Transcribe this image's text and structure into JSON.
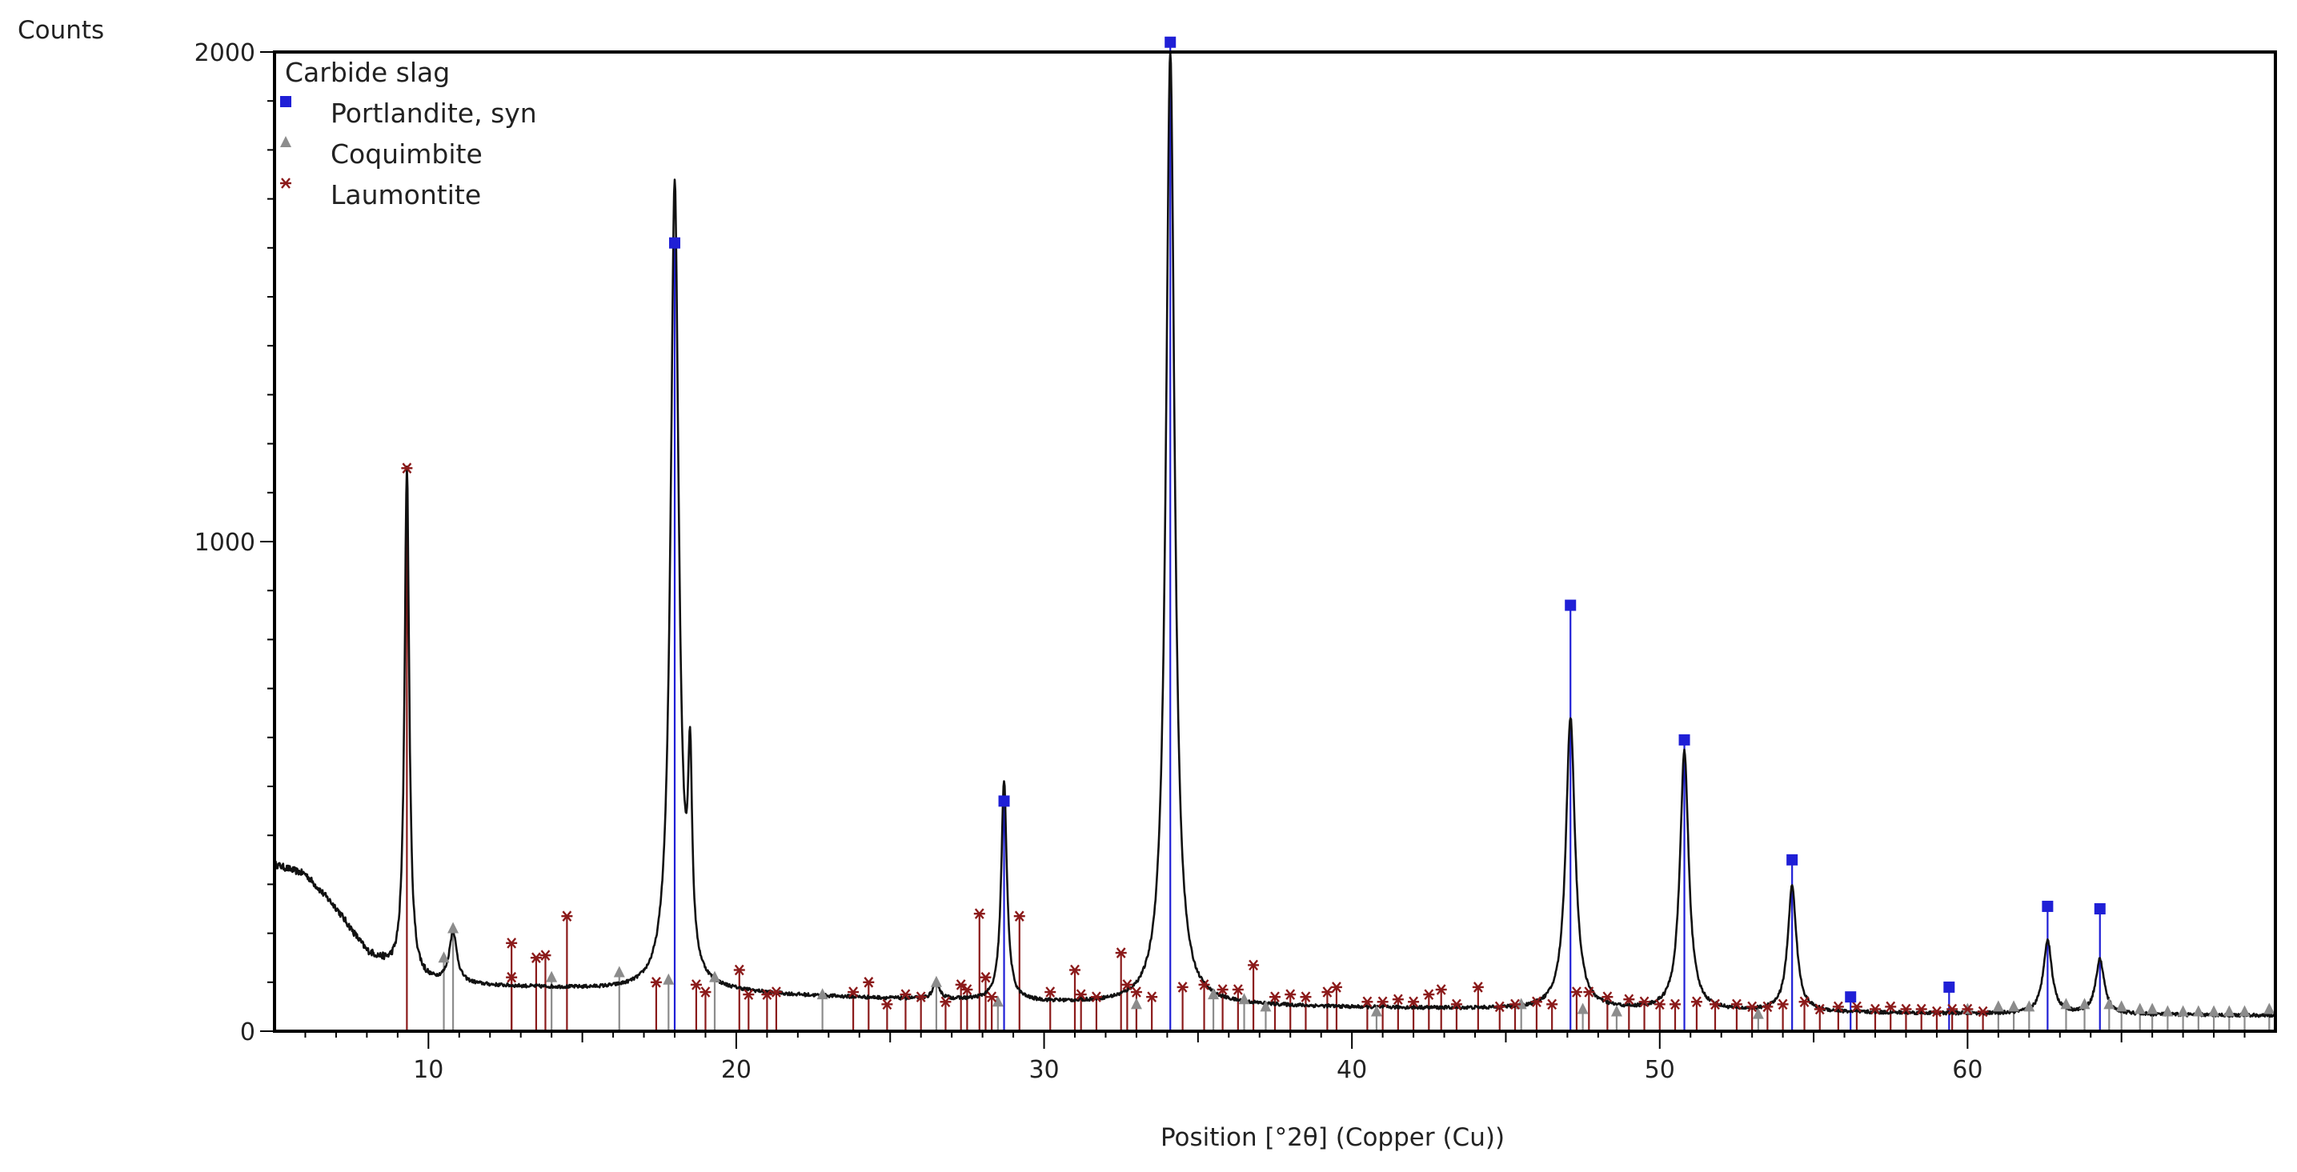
{
  "chart_data": {
    "type": "line",
    "xlabel": "Position [°2θ] (Copper (Cu))",
    "ylabel": "Counts",
    "xlim": [
      5,
      70
    ],
    "ylim": [
      0,
      2000
    ],
    "x_ticks": [
      10,
      20,
      30,
      40,
      50,
      60
    ],
    "y_ticks": [
      0,
      1000,
      2000
    ],
    "grid": false,
    "legend": {
      "placement": "top-left",
      "title": "Carbide slag",
      "entries": [
        {
          "name": "Portlandite, syn",
          "marker": "square",
          "color": "#1f1fd6"
        },
        {
          "name": "Coquimbite",
          "marker": "triangle",
          "color": "#8c8c8c"
        },
        {
          "name": "Laumontite",
          "marker": "asterisk",
          "color": "#8b1a1a"
        }
      ]
    },
    "series": [
      {
        "name": "Carbide slag",
        "color": "#111111",
        "background": [
          [
            5,
            340
          ],
          [
            6,
            320
          ],
          [
            7,
            250
          ],
          [
            8,
            160
          ],
          [
            9,
            120
          ],
          [
            10,
            100
          ],
          [
            11,
            95
          ],
          [
            12,
            92
          ],
          [
            14,
            88
          ],
          [
            16,
            84
          ],
          [
            18,
            80
          ],
          [
            20,
            78
          ],
          [
            22,
            72
          ],
          [
            25,
            66
          ],
          [
            28,
            62
          ],
          [
            30,
            58
          ],
          [
            33,
            55
          ],
          [
            36,
            52
          ],
          [
            40,
            48
          ],
          [
            45,
            45
          ],
          [
            50,
            42
          ],
          [
            55,
            38
          ],
          [
            60,
            36
          ],
          [
            65,
            34
          ],
          [
            70,
            32
          ]
        ],
        "peaks": [
          {
            "x": 9.3,
            "y": 1150,
            "w": 0.09
          },
          {
            "x": 10.8,
            "y": 200,
            "w": 0.15
          },
          {
            "x": 18.0,
            "y": 1730,
            "w": 0.16
          },
          {
            "x": 18.5,
            "y": 470,
            "w": 0.08
          },
          {
            "x": 26.5,
            "y": 100,
            "w": 0.12
          },
          {
            "x": 28.7,
            "y": 510,
            "w": 0.11
          },
          {
            "x": 34.1,
            "y": 2000,
            "w": 0.17
          },
          {
            "x": 47.1,
            "y": 640,
            "w": 0.18
          },
          {
            "x": 50.8,
            "y": 570,
            "w": 0.17
          },
          {
            "x": 54.3,
            "y": 295,
            "w": 0.17
          },
          {
            "x": 62.6,
            "y": 185,
            "w": 0.17
          },
          {
            "x": 64.3,
            "y": 145,
            "w": 0.17
          }
        ]
      }
    ],
    "reference_peaks": {
      "Portlandite, syn": [
        [
          18.0,
          1610
        ],
        [
          28.7,
          470
        ],
        [
          34.1,
          2020
        ],
        [
          47.1,
          870
        ],
        [
          50.8,
          595
        ],
        [
          54.3,
          350
        ],
        [
          56.2,
          70
        ],
        [
          59.4,
          90
        ],
        [
          62.6,
          255
        ],
        [
          64.3,
          250
        ]
      ],
      "Coquimbite": [
        [
          10.5,
          150
        ],
        [
          10.8,
          210
        ],
        [
          14.0,
          110
        ],
        [
          16.2,
          120
        ],
        [
          17.8,
          105
        ],
        [
          19.3,
          110
        ],
        [
          22.8,
          75
        ],
        [
          26.5,
          100
        ],
        [
          28.5,
          60
        ],
        [
          33.0,
          55
        ],
        [
          35.5,
          75
        ],
        [
          36.5,
          65
        ],
        [
          37.2,
          50
        ],
        [
          40.8,
          40
        ],
        [
          45.5,
          55
        ],
        [
          47.5,
          45
        ],
        [
          48.6,
          40
        ],
        [
          53.2,
          35
        ],
        [
          60.0,
          45
        ],
        [
          61.0,
          50
        ],
        [
          61.5,
          50
        ],
        [
          62.0,
          50
        ],
        [
          63.2,
          55
        ],
        [
          63.8,
          55
        ],
        [
          64.6,
          55
        ],
        [
          65.0,
          50
        ],
        [
          65.6,
          45
        ],
        [
          66.0,
          45
        ],
        [
          66.5,
          40
        ],
        [
          67.0,
          40
        ],
        [
          67.5,
          40
        ],
        [
          68.0,
          40
        ],
        [
          68.5,
          40
        ],
        [
          69.0,
          40
        ],
        [
          69.8,
          45
        ]
      ],
      "Laumontite": [
        [
          9.3,
          1150
        ],
        [
          12.7,
          180
        ],
        [
          12.7,
          110
        ],
        [
          13.5,
          150
        ],
        [
          13.8,
          155
        ],
        [
          14.5,
          235
        ],
        [
          17.4,
          100
        ],
        [
          18.7,
          95
        ],
        [
          19.0,
          80
        ],
        [
          20.1,
          125
        ],
        [
          20.4,
          75
        ],
        [
          21.0,
          75
        ],
        [
          21.3,
          80
        ],
        [
          23.8,
          80
        ],
        [
          24.3,
          100
        ],
        [
          24.9,
          55
        ],
        [
          25.5,
          75
        ],
        [
          26.0,
          70
        ],
        [
          26.8,
          60
        ],
        [
          27.3,
          95
        ],
        [
          27.5,
          85
        ],
        [
          27.9,
          240
        ],
        [
          28.1,
          110
        ],
        [
          28.3,
          70
        ],
        [
          29.2,
          235
        ],
        [
          30.2,
          80
        ],
        [
          31.0,
          125
        ],
        [
          31.2,
          75
        ],
        [
          31.7,
          70
        ],
        [
          32.5,
          160
        ],
        [
          32.7,
          95
        ],
        [
          33.0,
          80
        ],
        [
          33.5,
          70
        ],
        [
          34.5,
          90
        ],
        [
          35.2,
          95
        ],
        [
          35.8,
          85
        ],
        [
          36.3,
          85
        ],
        [
          36.8,
          135
        ],
        [
          37.5,
          70
        ],
        [
          38.0,
          75
        ],
        [
          38.5,
          70
        ],
        [
          39.2,
          80
        ],
        [
          39.5,
          90
        ],
        [
          40.5,
          60
        ],
        [
          41.0,
          60
        ],
        [
          41.5,
          65
        ],
        [
          42.0,
          60
        ],
        [
          42.5,
          75
        ],
        [
          42.9,
          85
        ],
        [
          43.4,
          55
        ],
        [
          44.1,
          90
        ],
        [
          44.8,
          50
        ],
        [
          45.3,
          55
        ],
        [
          46.0,
          60
        ],
        [
          46.5,
          55
        ],
        [
          47.3,
          80
        ],
        [
          47.7,
          80
        ],
        [
          48.3,
          70
        ],
        [
          49.0,
          65
        ],
        [
          49.5,
          60
        ],
        [
          50.0,
          55
        ],
        [
          50.5,
          55
        ],
        [
          51.2,
          60
        ],
        [
          51.8,
          55
        ],
        [
          52.5,
          55
        ],
        [
          53.0,
          50
        ],
        [
          53.5,
          50
        ],
        [
          54.0,
          55
        ],
        [
          54.7,
          60
        ],
        [
          55.2,
          45
        ],
        [
          55.8,
          50
        ],
        [
          56.4,
          50
        ],
        [
          57.0,
          45
        ],
        [
          57.5,
          50
        ],
        [
          58.0,
          45
        ],
        [
          58.5,
          45
        ],
        [
          59.0,
          40
        ],
        [
          59.5,
          45
        ],
        [
          60.0,
          45
        ],
        [
          60.5,
          40
        ]
      ]
    }
  }
}
